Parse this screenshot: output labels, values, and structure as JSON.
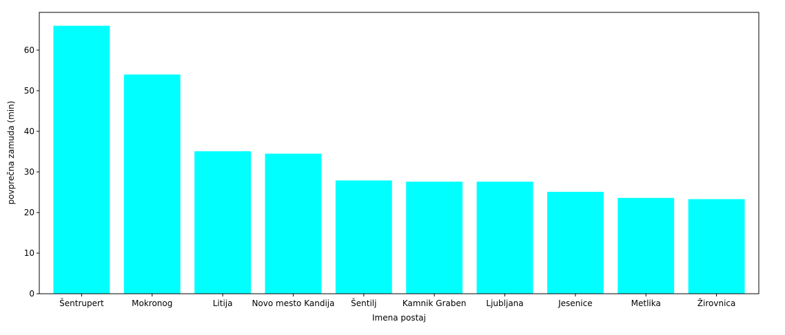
{
  "chart_data": {
    "type": "bar",
    "title": "",
    "xlabel": "Imena postaj",
    "ylabel": "povprečna zamuda (min)",
    "categories": [
      "Šentrupert",
      "Mokronog",
      "Litija",
      "Novo mesto Kandija",
      "Šentilj",
      "Kamnik Graben",
      "Ljubljana",
      "Jesenice",
      "Metlika",
      "Žirovnica"
    ],
    "values": [
      66.0,
      54.0,
      35.1,
      34.5,
      27.9,
      27.6,
      27.6,
      25.1,
      23.6,
      23.3
    ],
    "ylim": [
      0,
      69.3
    ],
    "yticks": [
      0,
      10,
      20,
      30,
      40,
      50,
      60
    ],
    "grid": false,
    "legend": "none",
    "bar_color": "#00ffff"
  }
}
